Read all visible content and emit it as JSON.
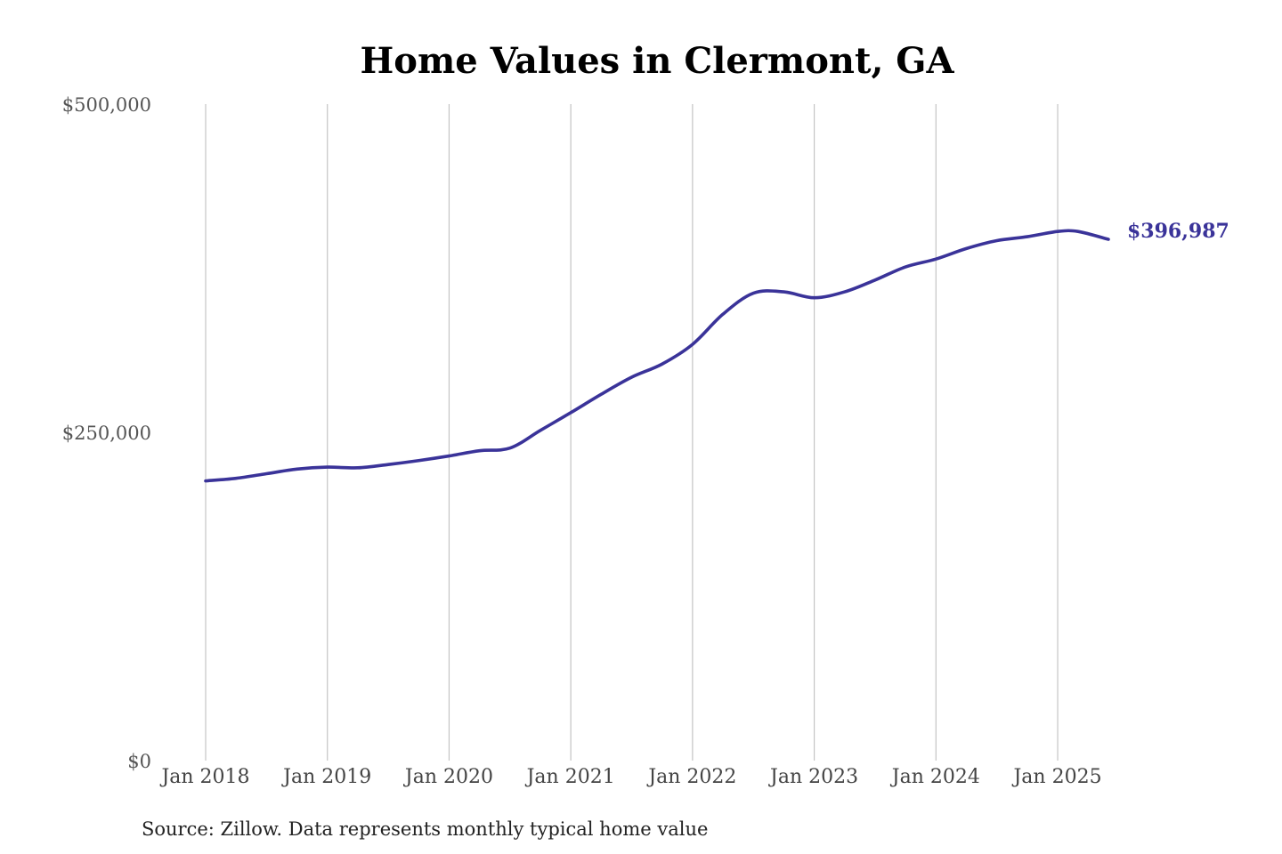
{
  "chart_data": {
    "type": "line",
    "title": "Home Values in Clermont, GA",
    "source": "Source: Zillow. Data represents monthly typical home value",
    "ylim": [
      0,
      500000
    ],
    "yticks": [
      {
        "value": 0,
        "label": "$0"
      },
      {
        "value": 250000,
        "label": "$250,000"
      },
      {
        "value": 500000,
        "label": "$500,000"
      }
    ],
    "xlim": [
      "2018-01",
      "2025-06"
    ],
    "xticks": [
      {
        "value": "2018-01",
        "label": "Jan 2018"
      },
      {
        "value": "2019-01",
        "label": "Jan 2019"
      },
      {
        "value": "2020-01",
        "label": "Jan 2020"
      },
      {
        "value": "2021-01",
        "label": "Jan 2021"
      },
      {
        "value": "2022-01",
        "label": "Jan 2022"
      },
      {
        "value": "2023-01",
        "label": "Jan 2023"
      },
      {
        "value": "2024-01",
        "label": "Jan 2024"
      },
      {
        "value": "2025-01",
        "label": "Jan 2025"
      }
    ],
    "grid": {
      "vertical": true,
      "horizontal": false
    },
    "line_color": "#3a3399",
    "end_label": "$396,987",
    "series": [
      {
        "x": [
          "2018-01",
          "2018-04",
          "2018-07",
          "2018-10",
          "2019-01",
          "2019-04",
          "2019-07",
          "2019-10",
          "2020-01",
          "2020-04",
          "2020-07",
          "2020-10",
          "2021-01",
          "2021-04",
          "2021-07",
          "2021-10",
          "2022-01",
          "2022-04",
          "2022-07",
          "2022-10",
          "2023-01",
          "2023-04",
          "2023-07",
          "2023-10",
          "2024-01",
          "2024-04",
          "2024-07",
          "2024-10",
          "2025-01",
          "2025-03",
          "2025-06"
        ],
        "values": [
          213000,
          215000,
          218500,
          222000,
          223500,
          223000,
          225500,
          228500,
          232000,
          236000,
          238000,
          251500,
          265000,
          279000,
          292000,
          302000,
          317000,
          340000,
          356000,
          357000,
          352500,
          357000,
          366000,
          376000,
          382000,
          390000,
          396000,
          399000,
          403000,
          403000,
          396987
        ]
      }
    ]
  }
}
